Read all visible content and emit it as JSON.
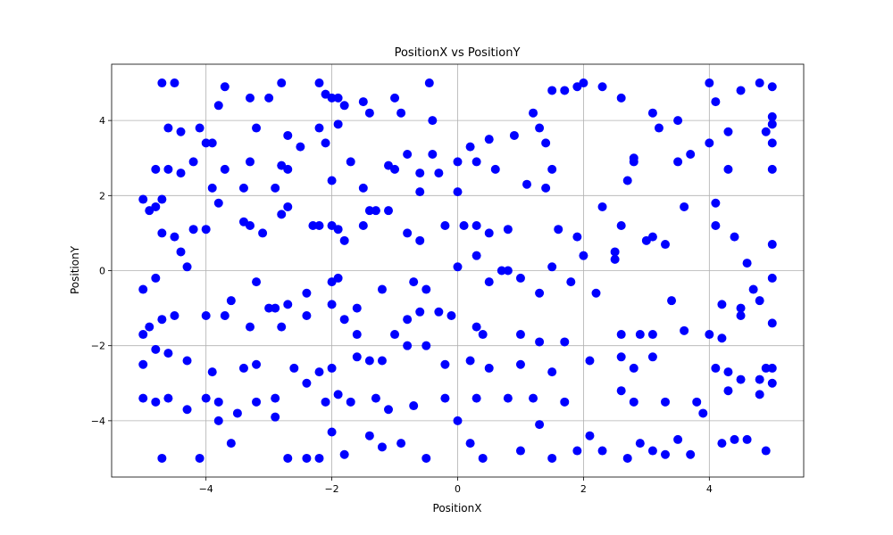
{
  "chart_data": {
    "type": "scatter",
    "title": "PositionX vs PositionY",
    "xlabel": "PositionX",
    "ylabel": "PositionY",
    "xlim": [
      -5.5,
      5.5
    ],
    "ylim": [
      -5.5,
      5.5
    ],
    "xticks": [
      -4,
      -2,
      0,
      2,
      4
    ],
    "yticks": [
      -4,
      -2,
      0,
      2,
      4
    ],
    "xtick_labels": [
      "−4",
      "−2",
      "0",
      "2",
      "4"
    ],
    "ytick_labels": [
      "−4",
      "−2",
      "0",
      "2",
      "4"
    ],
    "grid": true,
    "marker_color": "#0000ff",
    "points": [
      [
        -4.7,
        5.0
      ],
      [
        -4.5,
        5.0
      ],
      [
        -3.7,
        4.9
      ],
      [
        -3.3,
        4.6
      ],
      [
        -2.8,
        5.0
      ],
      [
        -2.2,
        5.0
      ],
      [
        -2.1,
        4.7
      ],
      [
        -2.0,
        4.6
      ],
      [
        -1.9,
        4.6
      ],
      [
        -1.8,
        4.4
      ],
      [
        -1.5,
        4.5
      ],
      [
        -1.4,
        4.2
      ],
      [
        -1.0,
        4.6
      ],
      [
        -0.9,
        4.2
      ],
      [
        -0.45,
        5.0
      ],
      [
        -0.4,
        4.0
      ],
      [
        1.5,
        4.8
      ],
      [
        1.7,
        4.8
      ],
      [
        1.9,
        4.9
      ],
      [
        2.0,
        5.0
      ],
      [
        2.3,
        4.9
      ],
      [
        2.6,
        4.6
      ],
      [
        4.0,
        5.0
      ],
      [
        4.1,
        4.5
      ],
      [
        4.5,
        4.8
      ],
      [
        4.8,
        5.0
      ],
      [
        5.0,
        4.9
      ],
      [
        5.0,
        4.1
      ],
      [
        5.0,
        3.9
      ],
      [
        5.0,
        3.4
      ],
      [
        -4.6,
        3.8
      ],
      [
        -4.4,
        3.7
      ],
      [
        -4.1,
        3.8
      ],
      [
        -4.0,
        3.4
      ],
      [
        -3.9,
        3.4
      ],
      [
        -3.8,
        4.4
      ],
      [
        -3.2,
        3.8
      ],
      [
        -3.0,
        4.6
      ],
      [
        -2.7,
        3.6
      ],
      [
        -2.5,
        3.3
      ],
      [
        -2.2,
        3.8
      ],
      [
        -2.1,
        3.4
      ],
      [
        -1.9,
        3.9
      ],
      [
        -0.8,
        3.1
      ],
      [
        -0.4,
        3.1
      ],
      [
        0.2,
        3.3
      ],
      [
        0.5,
        3.5
      ],
      [
        0.9,
        3.6
      ],
      [
        1.2,
        4.2
      ],
      [
        1.3,
        3.8
      ],
      [
        1.4,
        3.4
      ],
      [
        2.8,
        3.0
      ],
      [
        3.1,
        4.2
      ],
      [
        3.2,
        3.8
      ],
      [
        3.5,
        4.0
      ],
      [
        3.5,
        2.9
      ],
      [
        3.7,
        3.1
      ],
      [
        4.0,
        3.4
      ],
      [
        4.3,
        3.7
      ],
      [
        4.9,
        3.7
      ],
      [
        -5.0,
        1.9
      ],
      [
        -4.9,
        1.6
      ],
      [
        -4.8,
        2.7
      ],
      [
        -4.7,
        1.9
      ],
      [
        -4.6,
        2.7
      ],
      [
        -4.4,
        2.6
      ],
      [
        -4.2,
        2.9
      ],
      [
        -3.9,
        2.2
      ],
      [
        -3.7,
        2.7
      ],
      [
        -3.4,
        2.2
      ],
      [
        -3.3,
        2.9
      ],
      [
        -2.9,
        2.2
      ],
      [
        -2.8,
        2.8
      ],
      [
        -2.7,
        2.7
      ],
      [
        -2.0,
        2.4
      ],
      [
        -1.7,
        2.9
      ],
      [
        -1.5,
        2.2
      ],
      [
        -1.1,
        2.8
      ],
      [
        -1.0,
        2.7
      ],
      [
        -0.6,
        2.6
      ],
      [
        -0.6,
        2.1
      ],
      [
        -0.3,
        2.6
      ],
      [
        0.0,
        2.9
      ],
      [
        0.0,
        2.1
      ],
      [
        0.3,
        2.9
      ],
      [
        0.6,
        2.7
      ],
      [
        1.1,
        2.3
      ],
      [
        1.4,
        2.2
      ],
      [
        1.5,
        2.7
      ],
      [
        2.7,
        2.4
      ],
      [
        2.8,
        2.9
      ],
      [
        4.3,
        2.7
      ],
      [
        5.0,
        2.7
      ],
      [
        -4.8,
        1.7
      ],
      [
        -4.7,
        1.0
      ],
      [
        -4.5,
        0.9
      ],
      [
        -4.4,
        0.5
      ],
      [
        -4.2,
        1.1
      ],
      [
        -4.0,
        1.1
      ],
      [
        -3.8,
        1.8
      ],
      [
        -3.4,
        1.3
      ],
      [
        -3.3,
        1.2
      ],
      [
        -3.1,
        1.0
      ],
      [
        -2.8,
        1.5
      ],
      [
        -2.7,
        1.7
      ],
      [
        -2.3,
        1.2
      ],
      [
        -2.2,
        1.2
      ],
      [
        -2.0,
        1.2
      ],
      [
        -1.9,
        1.1
      ],
      [
        -1.8,
        0.8
      ],
      [
        -1.5,
        1.2
      ],
      [
        -1.4,
        1.6
      ],
      [
        -1.3,
        1.6
      ],
      [
        -1.1,
        1.6
      ],
      [
        -0.8,
        1.0
      ],
      [
        -0.6,
        0.8
      ],
      [
        -0.2,
        1.2
      ],
      [
        0.1,
        1.2
      ],
      [
        0.3,
        1.2
      ],
      [
        0.5,
        1.0
      ],
      [
        0.8,
        1.1
      ],
      [
        1.6,
        1.1
      ],
      [
        2.3,
        1.7
      ],
      [
        2.5,
        0.5
      ],
      [
        2.6,
        1.2
      ],
      [
        3.1,
        0.9
      ],
      [
        3.3,
        0.7
      ],
      [
        3.6,
        1.7
      ],
      [
        4.1,
        1.8
      ],
      [
        4.1,
        1.2
      ],
      [
        4.4,
        0.9
      ],
      [
        4.6,
        0.2
      ],
      [
        5.0,
        0.7
      ],
      [
        -5.0,
        -0.5
      ],
      [
        -4.8,
        -0.2
      ],
      [
        -4.3,
        0.1
      ],
      [
        -3.6,
        -0.8
      ],
      [
        -3.2,
        -0.3
      ],
      [
        -2.9,
        -1.0
      ],
      [
        -2.7,
        -0.9
      ],
      [
        -2.4,
        -0.6
      ],
      [
        -2.0,
        -0.3
      ],
      [
        -1.9,
        -0.2
      ],
      [
        -1.6,
        -1.0
      ],
      [
        -1.2,
        -0.5
      ],
      [
        -0.7,
        -0.3
      ],
      [
        -0.5,
        -0.5
      ],
      [
        0.0,
        0.1
      ],
      [
        0.3,
        0.4
      ],
      [
        0.5,
        -0.3
      ],
      [
        0.7,
        0.0
      ],
      [
        0.8,
        0.0
      ],
      [
        1.0,
        -0.2
      ],
      [
        1.3,
        -0.6
      ],
      [
        1.5,
        0.1
      ],
      [
        1.8,
        -0.3
      ],
      [
        1.9,
        0.9
      ],
      [
        2.0,
        0.4
      ],
      [
        2.2,
        -0.6
      ],
      [
        2.5,
        0.3
      ],
      [
        3.0,
        0.8
      ],
      [
        3.4,
        -0.8
      ],
      [
        4.2,
        -0.9
      ],
      [
        4.5,
        -1.0
      ],
      [
        4.7,
        -0.5
      ],
      [
        4.8,
        -0.8
      ],
      [
        5.0,
        -0.2
      ],
      [
        -5.0,
        -1.7
      ],
      [
        -4.9,
        -1.5
      ],
      [
        -4.7,
        -1.3
      ],
      [
        -4.5,
        -1.2
      ],
      [
        -4.0,
        -1.2
      ],
      [
        -3.7,
        -1.2
      ],
      [
        -3.3,
        -1.5
      ],
      [
        -3.0,
        -1.0
      ],
      [
        -2.8,
        -1.5
      ],
      [
        -2.4,
        -1.2
      ],
      [
        -2.0,
        -0.9
      ],
      [
        -1.8,
        -1.3
      ],
      [
        -1.6,
        -1.7
      ],
      [
        -1.0,
        -1.7
      ],
      [
        -0.8,
        -1.3
      ],
      [
        -0.6,
        -1.1
      ],
      [
        -0.3,
        -1.1
      ],
      [
        -0.1,
        -1.2
      ],
      [
        0.3,
        -1.5
      ],
      [
        0.4,
        -1.7
      ],
      [
        1.0,
        -1.7
      ],
      [
        1.3,
        -1.9
      ],
      [
        1.7,
        -1.9
      ],
      [
        2.6,
        -1.7
      ],
      [
        2.9,
        -1.7
      ],
      [
        3.1,
        -1.7
      ],
      [
        3.6,
        -1.6
      ],
      [
        4.0,
        -1.7
      ],
      [
        4.2,
        -1.8
      ],
      [
        4.5,
        -1.2
      ],
      [
        5.0,
        -1.4
      ],
      [
        -5.0,
        -2.5
      ],
      [
        -4.8,
        -2.1
      ],
      [
        -4.6,
        -2.2
      ],
      [
        -4.3,
        -2.4
      ],
      [
        -3.9,
        -2.7
      ],
      [
        -3.4,
        -2.6
      ],
      [
        -3.2,
        -2.5
      ],
      [
        -2.6,
        -2.6
      ],
      [
        -2.2,
        -2.7
      ],
      [
        -2.0,
        -2.6
      ],
      [
        -1.6,
        -2.3
      ],
      [
        -1.4,
        -2.4
      ],
      [
        -1.2,
        -2.4
      ],
      [
        -0.8,
        -2.0
      ],
      [
        -0.5,
        -2.0
      ],
      [
        -0.2,
        -2.5
      ],
      [
        0.2,
        -2.4
      ],
      [
        0.5,
        -2.6
      ],
      [
        1.0,
        -2.5
      ],
      [
        1.5,
        -2.7
      ],
      [
        2.1,
        -2.4
      ],
      [
        2.6,
        -2.3
      ],
      [
        2.8,
        -2.6
      ],
      [
        3.1,
        -2.3
      ],
      [
        4.1,
        -2.6
      ],
      [
        4.3,
        -2.7
      ],
      [
        4.5,
        -2.9
      ],
      [
        4.8,
        -2.9
      ],
      [
        4.9,
        -2.6
      ],
      [
        5.0,
        -2.6
      ],
      [
        -5.0,
        -3.4
      ],
      [
        -4.8,
        -3.5
      ],
      [
        -4.6,
        -3.4
      ],
      [
        -4.3,
        -3.7
      ],
      [
        -4.0,
        -3.4
      ],
      [
        -3.8,
        -3.5
      ],
      [
        -3.5,
        -3.8
      ],
      [
        -3.2,
        -3.5
      ],
      [
        -2.9,
        -3.4
      ],
      [
        -2.4,
        -3.0
      ],
      [
        -2.1,
        -3.5
      ],
      [
        -1.9,
        -3.3
      ],
      [
        -1.7,
        -3.5
      ],
      [
        -1.3,
        -3.4
      ],
      [
        -1.1,
        -3.7
      ],
      [
        -0.7,
        -3.6
      ],
      [
        -0.2,
        -3.4
      ],
      [
        0.3,
        -3.4
      ],
      [
        0.8,
        -3.4
      ],
      [
        1.2,
        -3.4
      ],
      [
        1.7,
        -3.5
      ],
      [
        2.6,
        -3.2
      ],
      [
        2.8,
        -3.5
      ],
      [
        3.3,
        -3.5
      ],
      [
        3.8,
        -3.5
      ],
      [
        4.3,
        -3.2
      ],
      [
        4.8,
        -3.3
      ],
      [
        5.0,
        -3.0
      ],
      [
        -4.7,
        -5.0
      ],
      [
        -4.1,
        -5.0
      ],
      [
        -3.8,
        -4.0
      ],
      [
        -3.6,
        -4.6
      ],
      [
        -2.9,
        -3.9
      ],
      [
        -2.7,
        -5.0
      ],
      [
        -2.4,
        -5.0
      ],
      [
        -2.2,
        -5.0
      ],
      [
        -2.0,
        -4.3
      ],
      [
        -1.8,
        -4.9
      ],
      [
        -1.4,
        -4.4
      ],
      [
        -1.2,
        -4.7
      ],
      [
        -0.9,
        -4.6
      ],
      [
        -0.5,
        -5.0
      ],
      [
        0.0,
        -4.0
      ],
      [
        0.2,
        -4.6
      ],
      [
        0.4,
        -5.0
      ],
      [
        1.0,
        -4.8
      ],
      [
        1.3,
        -4.1
      ],
      [
        1.5,
        -5.0
      ],
      [
        1.9,
        -4.8
      ],
      [
        2.1,
        -4.4
      ],
      [
        2.3,
        -4.8
      ],
      [
        2.7,
        -5.0
      ],
      [
        2.9,
        -4.6
      ],
      [
        3.1,
        -4.8
      ],
      [
        3.3,
        -4.9
      ],
      [
        3.5,
        -4.5
      ],
      [
        3.7,
        -4.9
      ],
      [
        3.9,
        -3.8
      ],
      [
        4.2,
        -4.6
      ],
      [
        4.4,
        -4.5
      ],
      [
        4.6,
        -4.5
      ],
      [
        4.9,
        -4.8
      ]
    ]
  }
}
